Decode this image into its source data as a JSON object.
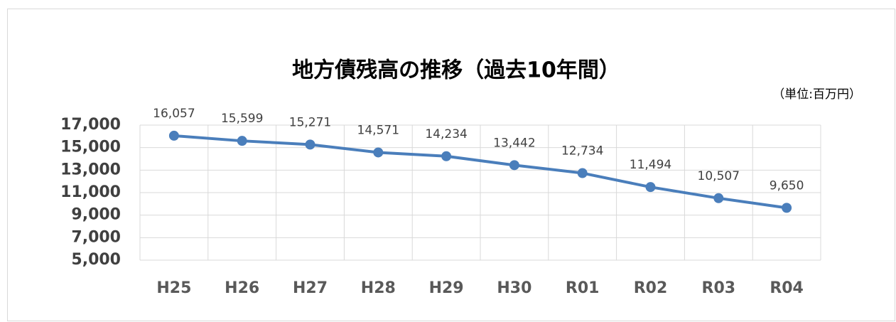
{
  "chart_data": {
    "type": "line",
    "title": "地方債残高の推移（過去10年間）",
    "unit_label": "（単位:百万円）",
    "categories": [
      "H25",
      "H26",
      "H27",
      "H28",
      "H29",
      "H30",
      "R01",
      "R02",
      "R03",
      "R04"
    ],
    "series": [
      {
        "color": "#4a7ebb",
        "values": [
          16057,
          15599,
          15271,
          14571,
          14234,
          13442,
          12734,
          11494,
          10507,
          9650
        ],
        "value_labels": [
          "16,057",
          "15,599",
          "15,271",
          "14,571",
          "14,234",
          "13,442",
          "12,734",
          "11,494",
          "10,507",
          "9,650"
        ]
      }
    ],
    "ylim": [
      5000,
      17000
    ],
    "yticks": [
      {
        "value": 5000,
        "label": "5,000"
      },
      {
        "value": 7000,
        "label": "7,000"
      },
      {
        "value": 9000,
        "label": "9,000"
      },
      {
        "value": 11000,
        "label": "11,000"
      },
      {
        "value": 13000,
        "label": "13,000"
      },
      {
        "value": 15000,
        "label": "15,000"
      },
      {
        "value": 17000,
        "label": "17,000"
      }
    ],
    "grid": true
  }
}
